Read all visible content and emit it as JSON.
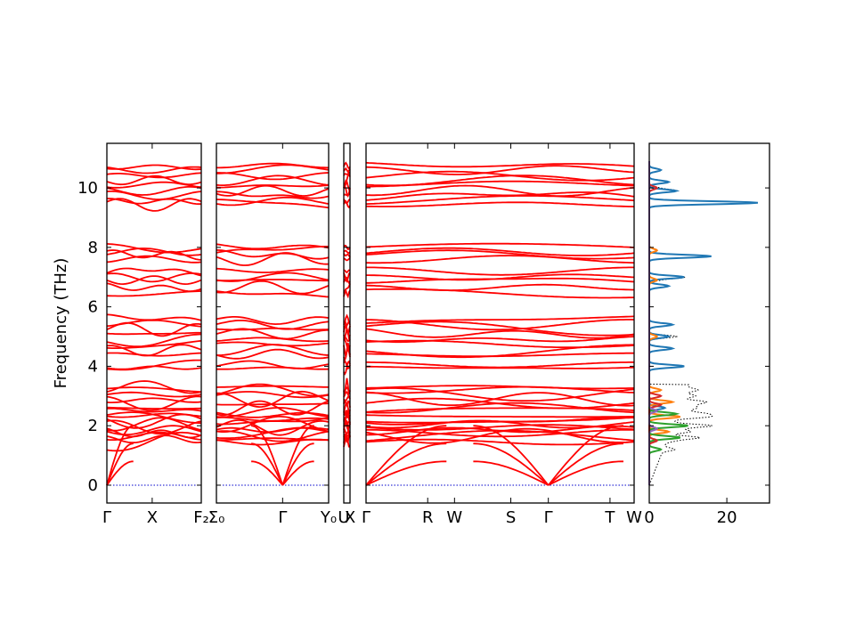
{
  "chart_data": {
    "type": "line",
    "ylabel": "Frequency (THz)",
    "ylim": [
      -0.6,
      11.5
    ],
    "yticks": [
      0,
      2,
      4,
      6,
      8,
      10
    ],
    "band_color": "#ff0000",
    "zero_line_color": "#0000cc",
    "segments": [
      {
        "ticks": [
          "Γ",
          "X",
          "F₂"
        ],
        "tick_pos": [
          0,
          0.48,
          1.0
        ]
      },
      {
        "ticks": [
          "Σ₀",
          "Γ",
          "Y₀"
        ],
        "tick_pos": [
          0,
          0.59,
          1.0
        ]
      },
      {
        "ticks": [
          "U",
          "X"
        ],
        "tick_pos": [
          0,
          1.0
        ]
      },
      {
        "ticks": [
          "Γ",
          "R",
          "W",
          "S",
          "Γ",
          "T",
          "W"
        ],
        "tick_pos": [
          0,
          0.23,
          0.33,
          0.54,
          0.68,
          0.91,
          1.0
        ]
      }
    ],
    "bands": {
      "acoustic": {
        "segment_gamma": [
          0.0,
          0.59,
          0.0,
          0.68
        ],
        "tops": [
          0.8,
          1.4,
          2.0
        ]
      },
      "low_cluster": [
        1.45,
        1.55,
        1.65,
        1.75,
        1.85,
        1.95,
        2.05,
        2.15,
        2.25,
        2.35,
        2.45,
        2.6,
        2.75,
        2.9,
        3.05,
        3.2,
        3.3
      ],
      "mid_cluster": [
        3.95,
        4.05,
        4.4,
        4.55,
        4.75,
        4.9,
        5.1,
        5.25,
        5.4,
        5.55
      ],
      "upper_cluster": [
        6.45,
        6.65,
        6.9,
        7.0,
        7.2,
        7.6,
        7.75,
        7.85,
        8.0
      ],
      "top_cluster": [
        9.45,
        9.55,
        9.75,
        9.9,
        10.1,
        10.25,
        10.4,
        10.6,
        10.75
      ]
    },
    "dos": {
      "xlim": [
        0,
        31
      ],
      "xticks": [
        0,
        20
      ],
      "series": [
        {
          "color": "#1f77b4",
          "peaks": [
            [
              9.5,
              28
            ],
            [
              9.9,
              7
            ],
            [
              10.2,
              5
            ],
            [
              10.6,
              3
            ],
            [
              7.7,
              16
            ],
            [
              7.0,
              9
            ],
            [
              6.7,
              5
            ],
            [
              5.4,
              6
            ],
            [
              5.0,
              5
            ],
            [
              4.6,
              6
            ],
            [
              4.0,
              9
            ],
            [
              2.6,
              4
            ]
          ]
        },
        {
          "color": "#ff7f0e",
          "peaks": [
            [
              2.3,
              8
            ],
            [
              2.8,
              6
            ],
            [
              1.8,
              5
            ],
            [
              3.2,
              3
            ],
            [
              7.9,
              2
            ],
            [
              6.9,
              2
            ],
            [
              5.0,
              2
            ]
          ]
        },
        {
          "color": "#2ca02c",
          "peaks": [
            [
              2.0,
              10
            ],
            [
              1.6,
              8
            ],
            [
              2.4,
              7
            ],
            [
              1.2,
              3
            ]
          ]
        },
        {
          "color": "#d62728",
          "peaks": [
            [
              2.7,
              3
            ],
            [
              3.0,
              3
            ],
            [
              1.5,
              2
            ],
            [
              10.0,
              2
            ]
          ]
        },
        {
          "color": "#9467bd",
          "peaks": [
            [
              2.5,
              2
            ],
            [
              1.9,
              2
            ]
          ]
        }
      ],
      "total_color": "#000000"
    }
  }
}
